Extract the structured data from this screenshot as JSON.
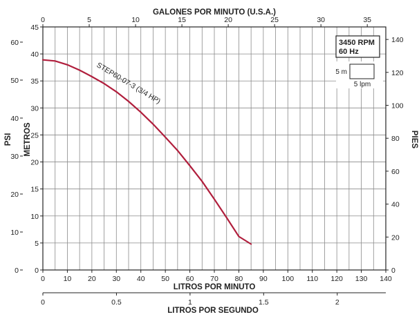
{
  "chart_data": {
    "type": "line",
    "title": "",
    "grid": true,
    "axes": {
      "x_bottom": {
        "label": "LITROS POR MINUTO",
        "range": [
          0,
          140
        ],
        "ticks": [
          0,
          10,
          20,
          30,
          40,
          50,
          60,
          70,
          80,
          90,
          100,
          110,
          120,
          130,
          140
        ]
      },
      "x_top": {
        "label": "GALONES POR MINUTO (U.S.A.)",
        "range": [
          0,
          37
        ],
        "ticks": [
          0,
          5,
          10,
          15,
          20,
          25,
          30,
          35
        ]
      },
      "x_lps": {
        "label": "LITROS POR SEGUNDO",
        "range": [
          0,
          2.33
        ],
        "ticks": [
          "0",
          "0.5",
          "1",
          "1.5",
          "2"
        ],
        "tick_values": [
          0,
          0.5,
          1,
          1.5,
          2
        ]
      },
      "y_metros": {
        "label": "METROS",
        "range": [
          0,
          45
        ],
        "ticks": [
          0,
          5,
          10,
          15,
          20,
          25,
          30,
          35,
          40,
          45
        ]
      },
      "y_psi": {
        "label": "PSI",
        "range": [
          0,
          64
        ],
        "ticks": [
          0,
          10,
          20,
          30,
          40,
          50,
          60
        ]
      },
      "y_pies": {
        "label": "PIES",
        "range": [
          0,
          147.6
        ],
        "ticks": [
          0,
          20,
          40,
          60,
          80,
          100,
          120,
          140
        ]
      }
    },
    "series": [
      {
        "name": "STEP60-07-3  (3/4 HP)",
        "color": "#b01e3c",
        "x": [
          0,
          5,
          10,
          15,
          20,
          25,
          30,
          35,
          40,
          45,
          50,
          55,
          60,
          65,
          70,
          75,
          80,
          85
        ],
        "y": [
          38.9,
          38.7,
          38.0,
          37.0,
          35.8,
          34.5,
          33.0,
          31.2,
          29.2,
          27.0,
          24.6,
          22.1,
          19.3,
          16.4,
          13.1,
          9.7,
          6.2,
          4.8
        ]
      }
    ],
    "annotation": {
      "rpm": "3450 RPM",
      "hz": "60 Hz",
      "scale_v": "5 m",
      "scale_h": "5 lpm"
    }
  },
  "colors": {
    "curve": "#b01e3c",
    "grid": "#8a8a8a",
    "text": "#222222"
  }
}
